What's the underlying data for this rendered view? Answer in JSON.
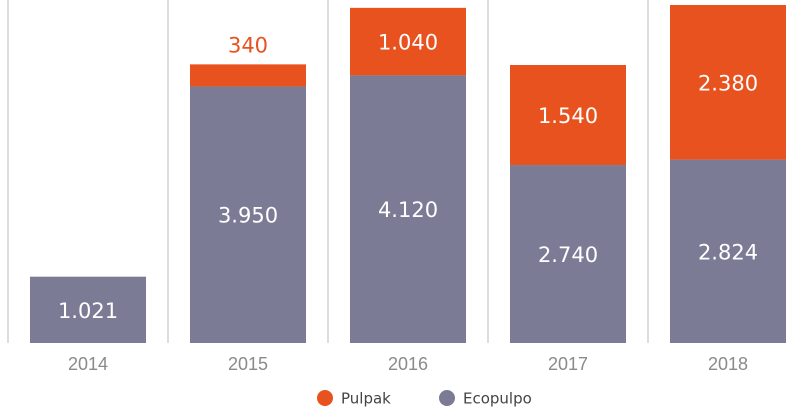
{
  "chart_data": {
    "type": "stacked_bar",
    "categories": [
      "2014",
      "2015",
      "2016",
      "2017",
      "2018"
    ],
    "series": [
      {
        "name": "Ecopulpo",
        "color": "#7b7b96",
        "values": [
          1021,
          3950,
          4120,
          2740,
          2824
        ],
        "value_labels": [
          "1.021",
          "3.950",
          "4.120",
          "2.740",
          "2.824"
        ]
      },
      {
        "name": "Pulpak",
        "color": "#e8521e",
        "values": [
          null,
          340,
          1040,
          1540,
          2380
        ],
        "value_labels": [
          null,
          "340",
          "1.040",
          "1.540",
          "2.380"
        ]
      }
    ],
    "legend_order": [
      1,
      0
    ]
  }
}
